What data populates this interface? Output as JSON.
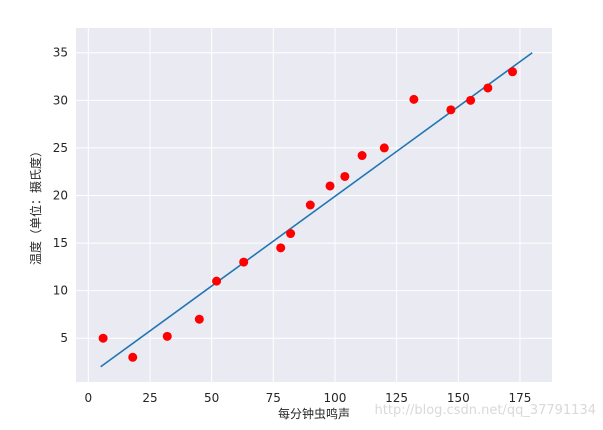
{
  "chart_data": {
    "type": "scatter",
    "title": "",
    "xlabel": "每分钟虫鸣声",
    "ylabel": "温度（单位：摄氏度）",
    "xlim": [
      -5,
      188
    ],
    "ylim": [
      0.4,
      37.6
    ],
    "xticks": [
      0,
      25,
      50,
      75,
      100,
      125,
      150,
      175
    ],
    "yticks": [
      5,
      10,
      15,
      20,
      25,
      30,
      35
    ],
    "grid": true,
    "series": [
      {
        "type": "scatter",
        "color": "#ff0000",
        "x": [
          6,
          18,
          32,
          45,
          52,
          63,
          78,
          82,
          90,
          98,
          104,
          111,
          120,
          132,
          147,
          155,
          162,
          172
        ],
        "y": [
          5,
          3,
          5.2,
          7,
          11,
          13,
          14.5,
          16,
          19,
          21,
          22,
          24.2,
          25,
          30.1,
          29,
          30,
          31.3,
          33
        ]
      },
      {
        "type": "line",
        "color": "#1f77b4",
        "x": [
          5,
          180
        ],
        "y": [
          2,
          35
        ]
      }
    ],
    "background": "#eaeaf2",
    "grid_color": "#ffffff"
  },
  "watermark": "http://blog.csdn.net/qq_37791134"
}
